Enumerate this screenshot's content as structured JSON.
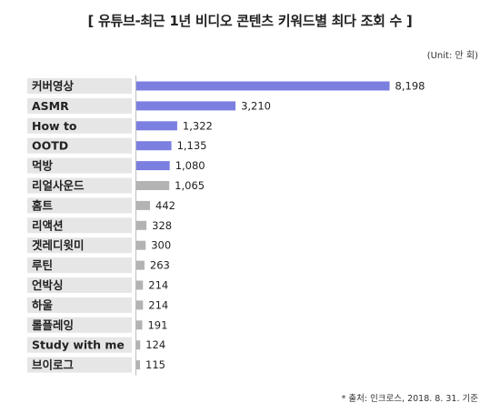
{
  "title": "[ 유튜브-최근 1년 비디오 콘텐츠 키워드별 최다 조회 수 ]",
  "unit": "(Unit: 만 회)",
  "source": "* 출처: 인크로스, 2018. 8. 31. 기준",
  "colors": {
    "highlight": "#7b7fe0",
    "default": "#b3b3b3",
    "band": "#e6e6e6",
    "axis": "#bbbbbb"
  },
  "chart_data": {
    "type": "bar",
    "orientation": "horizontal",
    "title": "[ 유튜브-최근 1년 비디오 콘텐츠 키워드별 최다 조회 수 ]",
    "unit": "(Unit: 만 회)",
    "categories": [
      "커버영상",
      "ASMR",
      "How to",
      "OOTD",
      "먹방",
      "리얼사운드",
      "홈트",
      "리액션",
      "겟레디윗미",
      "루틴",
      "언박싱",
      "하울",
      "롤플레잉",
      "Study with me",
      "브이로그"
    ],
    "values": [
      8198,
      3210,
      1322,
      1135,
      1080,
      1065,
      442,
      328,
      300,
      263,
      214,
      214,
      191,
      124,
      115
    ],
    "value_labels": [
      "8,198",
      "3,210",
      "1,322",
      "1,135",
      "1,080",
      "1,065",
      "442",
      "328",
      "300",
      "263",
      "214",
      "214",
      "191",
      "124",
      "115"
    ],
    "highlighted_count": 5,
    "xlim": [
      0,
      8300
    ]
  }
}
